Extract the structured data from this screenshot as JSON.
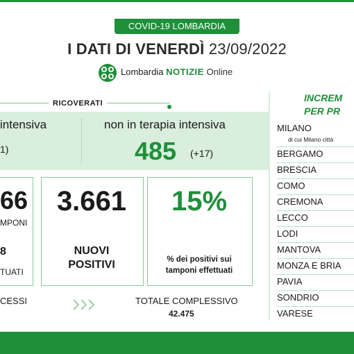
{
  "header": {
    "banner": "COVID-19 LOMBARDIA",
    "headline_prefix": "I DATI DI VENERDÌ",
    "headline_date": "23/09/2022",
    "brand_name": "Lombardia",
    "brand_notizie": "NOTIZIE",
    "brand_online": "Online"
  },
  "ricoverati": {
    "label": "RICOVERATI",
    "terapia_intensiva_label": "intensiva",
    "terapia_intensiva_sub": "1)",
    "non_terapia_label": "non in terapia intensiva",
    "non_terapia_value": "485",
    "non_terapia_delta": "(+17)"
  },
  "cards": {
    "tamponi_value": "66",
    "tamponi_label": "MPONI",
    "tamponi_value2": "8",
    "tamponi_label2": "TUATI",
    "nuovi_positivi_value": "3.661",
    "nuovi_positivi_label_line1": "NUOVI",
    "nuovi_positivi_label_line2": "POSITIVI",
    "percent_value": "15%",
    "percent_label_line1": "% dei positivi sui",
    "percent_label_line2": "tamponi effettuati"
  },
  "bottom": {
    "dimessi_label": "CESSI",
    "totale_label": "TOTALE COMPLESSIVO",
    "totale_value": "42.475"
  },
  "incrementi": {
    "title_line1": "INCREM",
    "title_line2": "PER PR",
    "provinces": [
      "MILANO",
      "BERGAMO",
      "BRESCIA",
      "COMO",
      "CREMONA",
      "LECCO",
      "LODI",
      "MANTOVA",
      "MONZA E BRIA",
      "PAVIA",
      "SONDRIO",
      "VARESE"
    ],
    "milano_sub": "di cui Milano città"
  },
  "colors": {
    "accent": "#1f8f3a",
    "panel": "#d9eedd"
  }
}
